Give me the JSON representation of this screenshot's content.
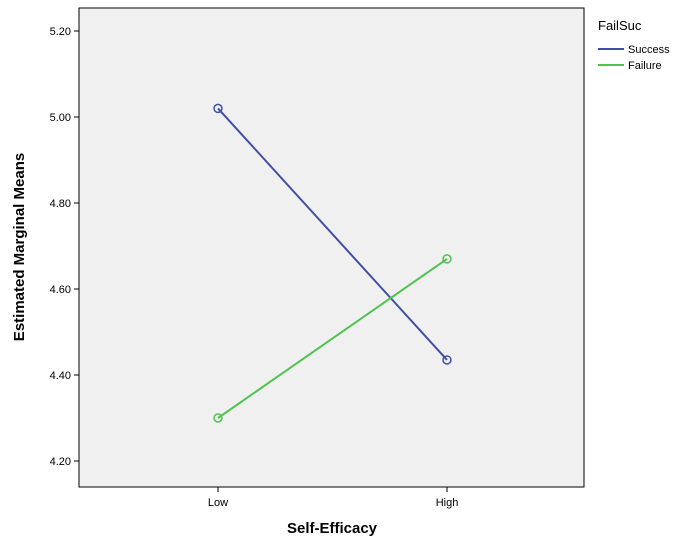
{
  "chart_data": {
    "type": "line",
    "title": "",
    "xlabel": "Self-Efficacy",
    "ylabel": "Estimated Marginal Means",
    "categories": [
      "Low",
      "High"
    ],
    "ylim": [
      4.15,
      5.25
    ],
    "yticks": [
      4.2,
      4.4,
      4.6,
      4.8,
      5.0,
      5.2
    ],
    "ytick_labels": [
      "4.20",
      "4.40",
      "4.60",
      "4.80",
      "5.00",
      "5.20"
    ],
    "grid": false,
    "plot_background": "#f0f0f0",
    "legend": {
      "title": "FailSuc",
      "placement": "right"
    },
    "series": [
      {
        "name": "Success",
        "values": [
          5.02,
          4.435
        ],
        "color": "#3f4fa6",
        "marker": "circle"
      },
      {
        "name": "Failure",
        "values": [
          4.3,
          4.67
        ],
        "color": "#4ec34e",
        "marker": "circle"
      }
    ]
  }
}
